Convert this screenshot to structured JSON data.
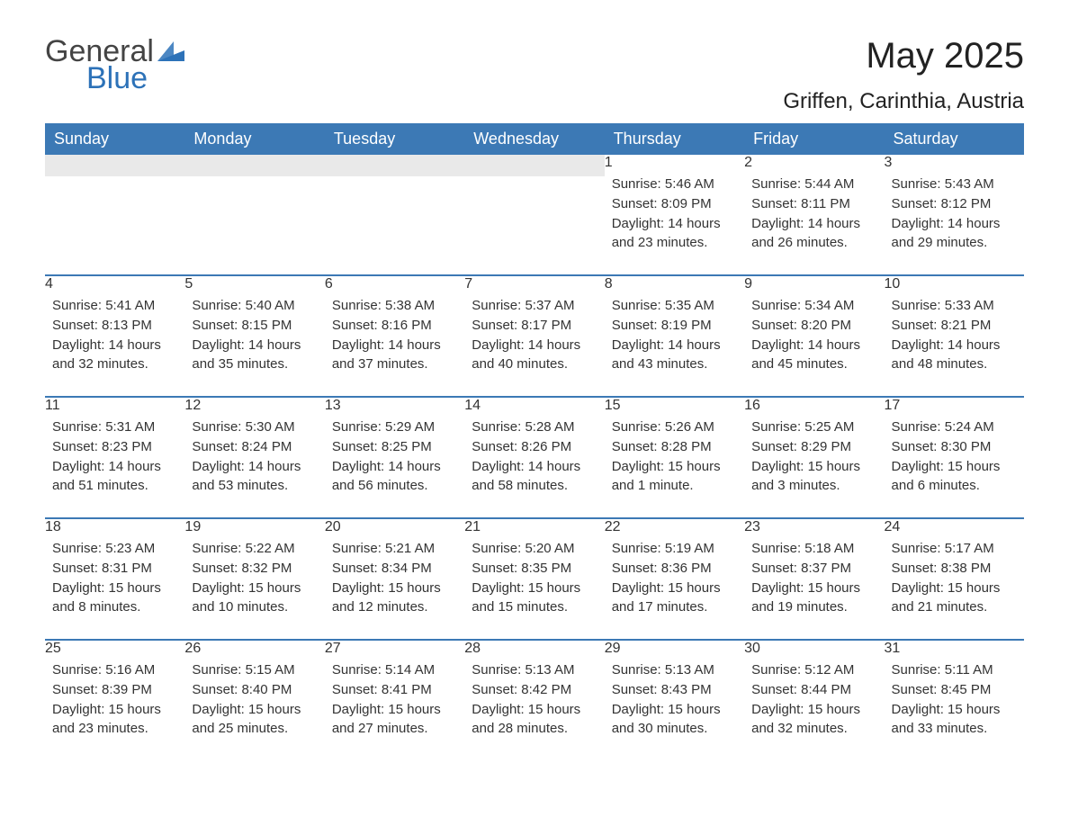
{
  "logo": {
    "word1": "General",
    "word2": "Blue",
    "flag_color": "#2d72b8"
  },
  "title": "May 2025",
  "location": "Griffen, Carinthia, Austria",
  "colors": {
    "header_bg": "#3c79b5",
    "row_sep": "#3c79b5",
    "daynum_bg": "#e9e9e9",
    "text": "#333333"
  },
  "weekdays": [
    "Sunday",
    "Monday",
    "Tuesday",
    "Wednesday",
    "Thursday",
    "Friday",
    "Saturday"
  ],
  "label_sunrise": "Sunrise: ",
  "label_sunset": "Sunset: ",
  "label_daylight": "Daylight: ",
  "weeks": [
    [
      null,
      null,
      null,
      null,
      {
        "day": "1",
        "sunrise": "5:46 AM",
        "sunset": "8:09 PM",
        "daylight": "14 hours and 23 minutes."
      },
      {
        "day": "2",
        "sunrise": "5:44 AM",
        "sunset": "8:11 PM",
        "daylight": "14 hours and 26 minutes."
      },
      {
        "day": "3",
        "sunrise": "5:43 AM",
        "sunset": "8:12 PM",
        "daylight": "14 hours and 29 minutes."
      }
    ],
    [
      {
        "day": "4",
        "sunrise": "5:41 AM",
        "sunset": "8:13 PM",
        "daylight": "14 hours and 32 minutes."
      },
      {
        "day": "5",
        "sunrise": "5:40 AM",
        "sunset": "8:15 PM",
        "daylight": "14 hours and 35 minutes."
      },
      {
        "day": "6",
        "sunrise": "5:38 AM",
        "sunset": "8:16 PM",
        "daylight": "14 hours and 37 minutes."
      },
      {
        "day": "7",
        "sunrise": "5:37 AM",
        "sunset": "8:17 PM",
        "daylight": "14 hours and 40 minutes."
      },
      {
        "day": "8",
        "sunrise": "5:35 AM",
        "sunset": "8:19 PM",
        "daylight": "14 hours and 43 minutes."
      },
      {
        "day": "9",
        "sunrise": "5:34 AM",
        "sunset": "8:20 PM",
        "daylight": "14 hours and 45 minutes."
      },
      {
        "day": "10",
        "sunrise": "5:33 AM",
        "sunset": "8:21 PM",
        "daylight": "14 hours and 48 minutes."
      }
    ],
    [
      {
        "day": "11",
        "sunrise": "5:31 AM",
        "sunset": "8:23 PM",
        "daylight": "14 hours and 51 minutes."
      },
      {
        "day": "12",
        "sunrise": "5:30 AM",
        "sunset": "8:24 PM",
        "daylight": "14 hours and 53 minutes."
      },
      {
        "day": "13",
        "sunrise": "5:29 AM",
        "sunset": "8:25 PM",
        "daylight": "14 hours and 56 minutes."
      },
      {
        "day": "14",
        "sunrise": "5:28 AM",
        "sunset": "8:26 PM",
        "daylight": "14 hours and 58 minutes."
      },
      {
        "day": "15",
        "sunrise": "5:26 AM",
        "sunset": "8:28 PM",
        "daylight": "15 hours and 1 minute."
      },
      {
        "day": "16",
        "sunrise": "5:25 AM",
        "sunset": "8:29 PM",
        "daylight": "15 hours and 3 minutes."
      },
      {
        "day": "17",
        "sunrise": "5:24 AM",
        "sunset": "8:30 PM",
        "daylight": "15 hours and 6 minutes."
      }
    ],
    [
      {
        "day": "18",
        "sunrise": "5:23 AM",
        "sunset": "8:31 PM",
        "daylight": "15 hours and 8 minutes."
      },
      {
        "day": "19",
        "sunrise": "5:22 AM",
        "sunset": "8:32 PM",
        "daylight": "15 hours and 10 minutes."
      },
      {
        "day": "20",
        "sunrise": "5:21 AM",
        "sunset": "8:34 PM",
        "daylight": "15 hours and 12 minutes."
      },
      {
        "day": "21",
        "sunrise": "5:20 AM",
        "sunset": "8:35 PM",
        "daylight": "15 hours and 15 minutes."
      },
      {
        "day": "22",
        "sunrise": "5:19 AM",
        "sunset": "8:36 PM",
        "daylight": "15 hours and 17 minutes."
      },
      {
        "day": "23",
        "sunrise": "5:18 AM",
        "sunset": "8:37 PM",
        "daylight": "15 hours and 19 minutes."
      },
      {
        "day": "24",
        "sunrise": "5:17 AM",
        "sunset": "8:38 PM",
        "daylight": "15 hours and 21 minutes."
      }
    ],
    [
      {
        "day": "25",
        "sunrise": "5:16 AM",
        "sunset": "8:39 PM",
        "daylight": "15 hours and 23 minutes."
      },
      {
        "day": "26",
        "sunrise": "5:15 AM",
        "sunset": "8:40 PM",
        "daylight": "15 hours and 25 minutes."
      },
      {
        "day": "27",
        "sunrise": "5:14 AM",
        "sunset": "8:41 PM",
        "daylight": "15 hours and 27 minutes."
      },
      {
        "day": "28",
        "sunrise": "5:13 AM",
        "sunset": "8:42 PM",
        "daylight": "15 hours and 28 minutes."
      },
      {
        "day": "29",
        "sunrise": "5:13 AM",
        "sunset": "8:43 PM",
        "daylight": "15 hours and 30 minutes."
      },
      {
        "day": "30",
        "sunrise": "5:12 AM",
        "sunset": "8:44 PM",
        "daylight": "15 hours and 32 minutes."
      },
      {
        "day": "31",
        "sunrise": "5:11 AM",
        "sunset": "8:45 PM",
        "daylight": "15 hours and 33 minutes."
      }
    ]
  ]
}
